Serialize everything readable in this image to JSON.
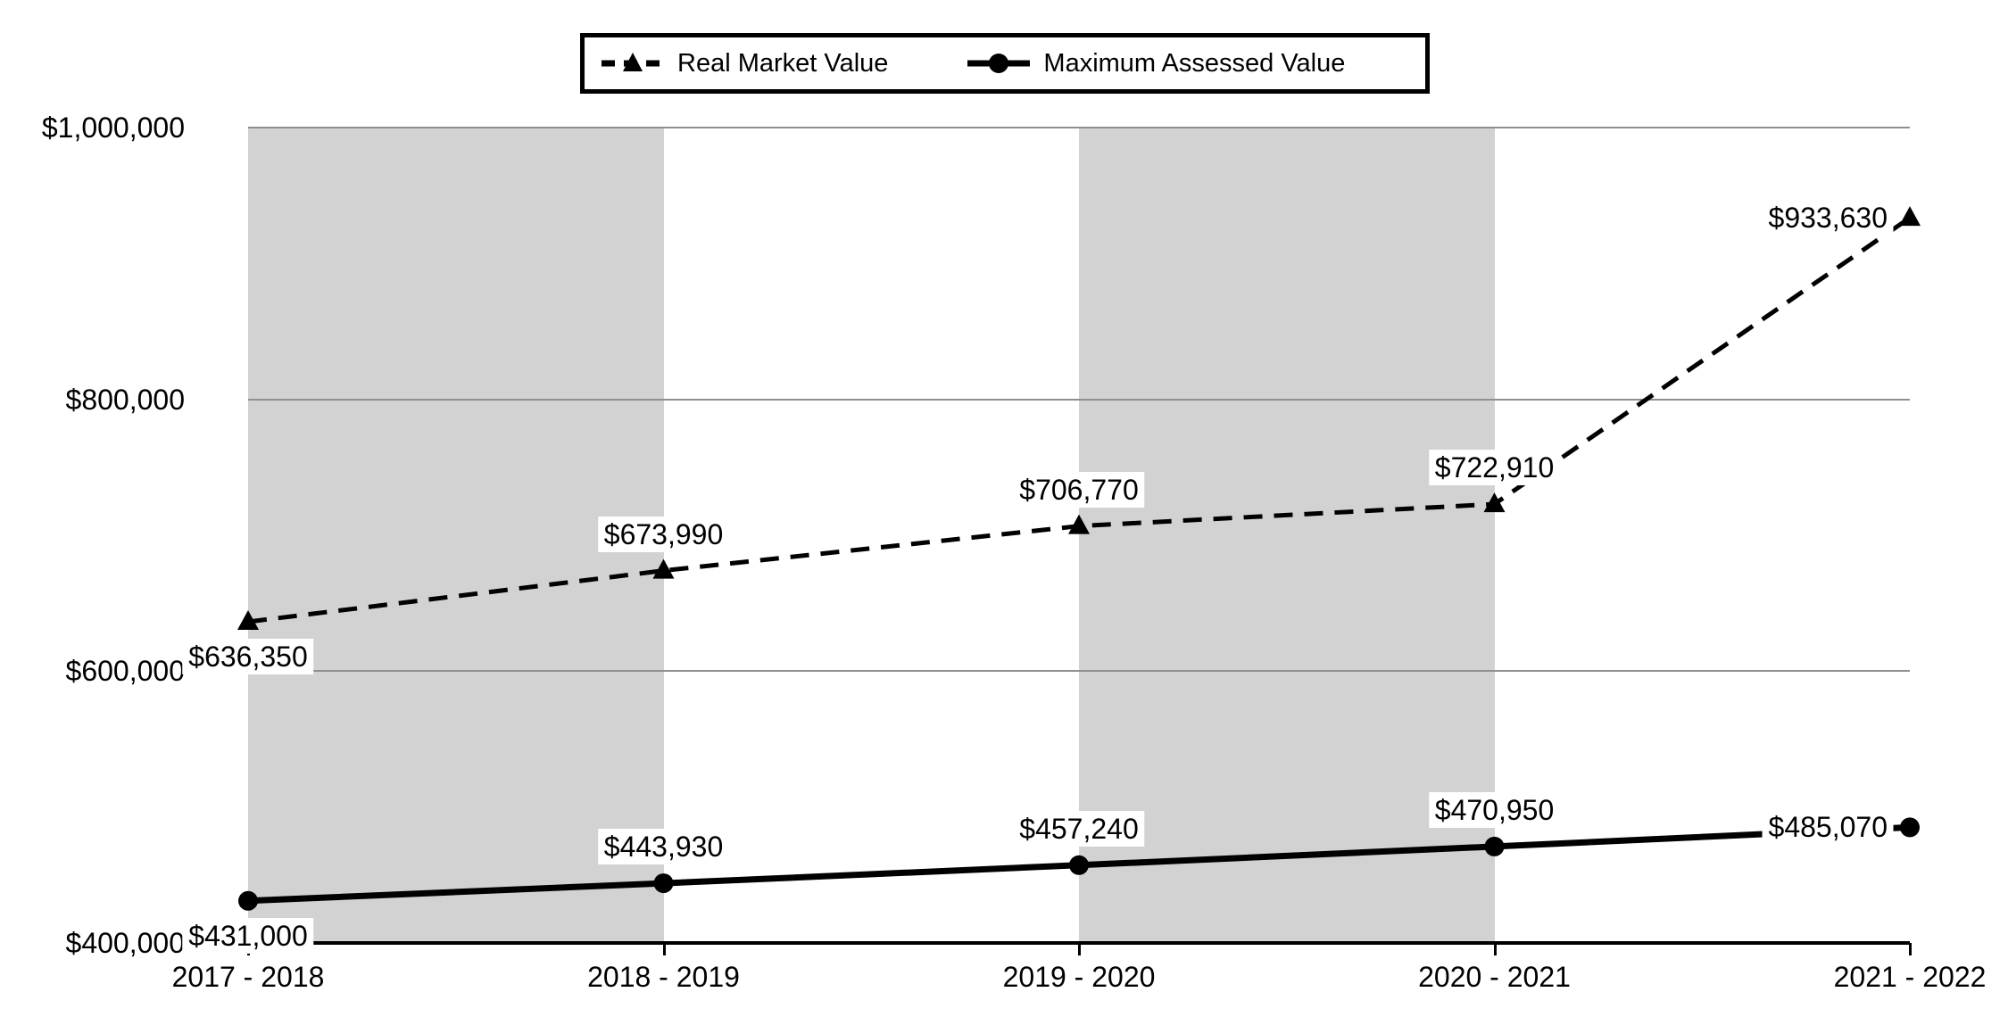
{
  "chart_data": {
    "type": "line",
    "categories": [
      "2017 - 2018",
      "2018 - 2019",
      "2019 - 2020",
      "2020 - 2021",
      "2021 - 2022"
    ],
    "series": [
      {
        "name": "Real Market Value",
        "marker": "triangle",
        "line_style": "dashed",
        "values": [
          636350,
          673990,
          706770,
          722910,
          933630
        ],
        "labels": [
          "$636,350",
          "$673,990",
          "$706,770",
          "$722,910",
          "$933,630"
        ],
        "label_positions": [
          "below",
          "above",
          "above",
          "above",
          "left"
        ]
      },
      {
        "name": "Maximum Assessed Value",
        "marker": "circle",
        "line_style": "solid",
        "values": [
          431000,
          443930,
          457240,
          470950,
          485070
        ],
        "labels": [
          "$431,000",
          "$443,930",
          "$457,240",
          "$470,950",
          "$485,070"
        ],
        "label_positions": [
          "below",
          "above",
          "above",
          "above",
          "left"
        ]
      }
    ],
    "ylim": [
      400000,
      1000000
    ],
    "y_ticks": [
      {
        "value": 400000,
        "label": "$400,000"
      },
      {
        "value": 600000,
        "label": "$600,000"
      },
      {
        "value": 800000,
        "label": "$800,000"
      },
      {
        "value": 1000000,
        "label": "$1,000,000"
      }
    ],
    "shaded_bands": [
      [
        0,
        1
      ],
      [
        2,
        3
      ]
    ],
    "grid": "horizontal",
    "legend_position": "top-center",
    "colors": {
      "line": "#000000",
      "band": "#d2d2d2",
      "gridline": "#8f8f8f",
      "label_background": "#ffffff",
      "background": "#ffffff"
    }
  }
}
